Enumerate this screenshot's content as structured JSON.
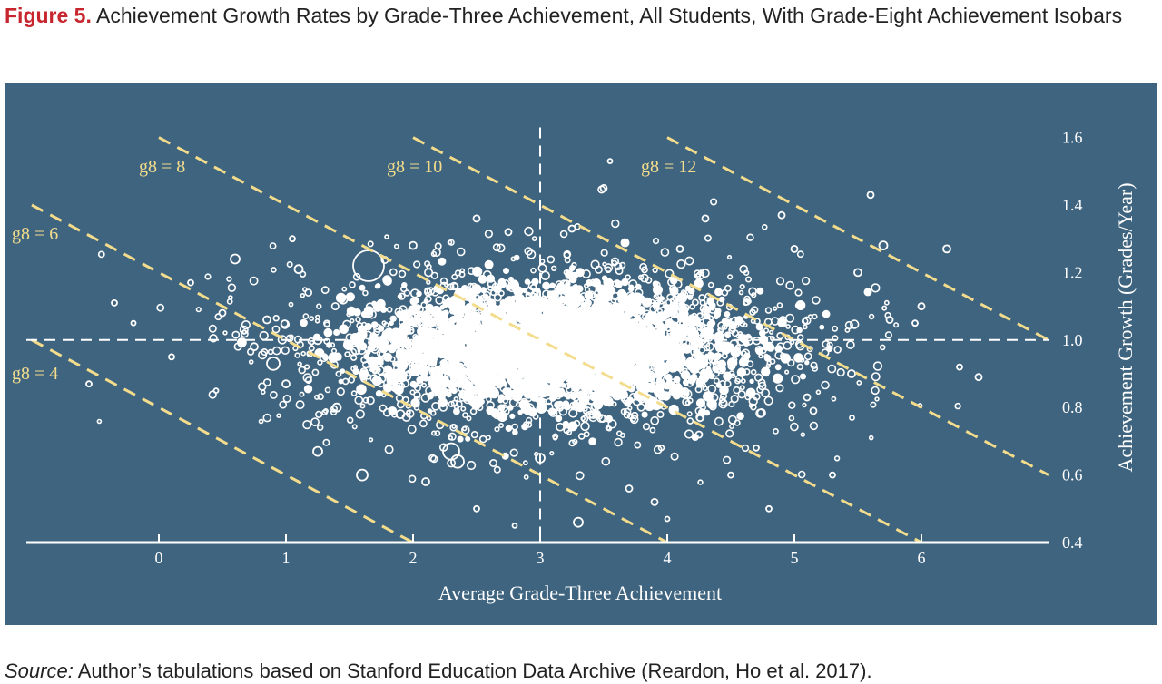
{
  "figure": {
    "label": "Figure 5.",
    "title": "Achievement Growth Rates by Grade-Three Achievement, All Students, With Grade-Eight Achievement Isobars"
  },
  "source": {
    "label": "Source:",
    "text": "Author’s tabulations based on Stanford Education Data Archive (Reardon, Ho et al. 2017)."
  },
  "colors": {
    "panel": "#3f647f",
    "points": "#ffffff",
    "isobar": "#f3dc8c",
    "axis": "#ffffff"
  },
  "chart_data": {
    "type": "scatter",
    "title": "Achievement Growth Rates by Grade-Three Achievement, All Students, With Grade-Eight Achievement Isobars",
    "xlabel": "Average Grade-Three Achievement",
    "ylabel": "Achievement Growth (Grades/Year)",
    "xlim": [
      -1,
      7
    ],
    "ylim": [
      0.4,
      1.65
    ],
    "xticks": [
      0,
      1,
      2,
      3,
      4,
      5,
      6
    ],
    "yticks": [
      0.4,
      0.6,
      0.8,
      1.0,
      1.2,
      1.4,
      1.6
    ],
    "ytick_labels": [
      "0.4",
      "0.6",
      "0.8",
      "1.0",
      "1.2",
      "1.4",
      "1.6"
    ],
    "y_axis_side": "right",
    "reference_lines": {
      "vertical_x": 3,
      "horizontal_y": 1.0,
      "style": "dashed"
    },
    "isobars": [
      {
        "label": "g8 = 4",
        "g8": 4
      },
      {
        "label": "g8 = 6",
        "g8": 6
      },
      {
        "label": "g8 = 8",
        "g8": 8
      },
      {
        "label": "g8 = 10",
        "g8": 10
      },
      {
        "label": "g8 = 12",
        "g8": 12
      }
    ],
    "isobar_relation": "growth = (g8 - g3) / 5",
    "point_cloud": {
      "center_x": 3.1,
      "center_y": 0.98,
      "spread_x": 1.05,
      "spread_y": 0.13,
      "x_range": [
        -0.7,
        6.5
      ],
      "y_range": [
        0.43,
        1.52
      ]
    },
    "points": [
      [
        0.9,
        0.93
      ],
      [
        1.65,
        1.22
      ],
      [
        2.3,
        0.67
      ],
      [
        2.35,
        0.64
      ],
      [
        1.6,
        0.6
      ],
      [
        1.25,
        0.67
      ],
      [
        3.3,
        0.46
      ],
      [
        3.0,
        0.65
      ],
      [
        2.1,
        0.58
      ],
      [
        0.6,
        1.24
      ],
      [
        3.55,
        1.53
      ],
      [
        5.7,
        1.28
      ],
      [
        5.6,
        1.43
      ],
      [
        6.2,
        1.27
      ],
      [
        6.45,
        0.89
      ],
      [
        0.25,
        1.17
      ],
      [
        -0.35,
        1.11
      ],
      [
        -0.55,
        0.87
      ],
      [
        -0.2,
        1.05
      ],
      [
        0.1,
        0.95
      ],
      [
        0.45,
        0.85
      ],
      [
        1.05,
        1.3
      ],
      [
        2.5,
        0.5
      ],
      [
        2.8,
        0.45
      ],
      [
        3.5,
        1.45
      ],
      [
        4.3,
        1.36
      ],
      [
        4.9,
        1.37
      ],
      [
        5.15,
        0.79
      ],
      [
        5.3,
        0.6
      ],
      [
        4.8,
        0.5
      ],
      [
        4.7,
        0.68
      ],
      [
        3.9,
        0.52
      ],
      [
        4.0,
        0.47
      ],
      [
        6.0,
        1.1
      ],
      [
        6.3,
        0.92
      ],
      [
        5.95,
        1.05
      ],
      [
        2.0,
        1.28
      ],
      [
        2.5,
        1.36
      ],
      [
        1.45,
        1.12
      ],
      [
        1.1,
        1.21
      ],
      [
        0.75,
        0.98
      ],
      [
        0.5,
        1.08
      ],
      [
        4.5,
        0.6
      ],
      [
        4.25,
        0.72
      ],
      [
        3.7,
        0.56
      ],
      [
        2.75,
        1.32
      ],
      [
        3.25,
        1.33
      ],
      [
        4.1,
        1.27
      ],
      [
        5.0,
        1.27
      ],
      [
        5.5,
        1.2
      ],
      [
        5.75,
        1.06
      ],
      [
        5.45,
        0.9
      ],
      [
        5.1,
        0.83
      ],
      [
        1.9,
        0.78
      ],
      [
        1.4,
        0.8
      ],
      [
        1.0,
        0.87
      ],
      [
        1.55,
        0.97
      ],
      [
        2.05,
        1.09
      ],
      [
        0.85,
        1.06
      ],
      [
        1.25,
        1.0
      ]
    ],
    "point_sizes": [
      14,
      34,
      18,
      14,
      12,
      10,
      10,
      10,
      8,
      10,
      5,
      9,
      7,
      8,
      7,
      6,
      6,
      6,
      5,
      6,
      5,
      6,
      6,
      5,
      7,
      7,
      7,
      7,
      6,
      6,
      6,
      7,
      5,
      7,
      6,
      6,
      8,
      7,
      9,
      9,
      8,
      7,
      6,
      7,
      7,
      7,
      7,
      7,
      7,
      8,
      7,
      8,
      7,
      9,
      9,
      8,
      9,
      8,
      8,
      9
    ]
  }
}
